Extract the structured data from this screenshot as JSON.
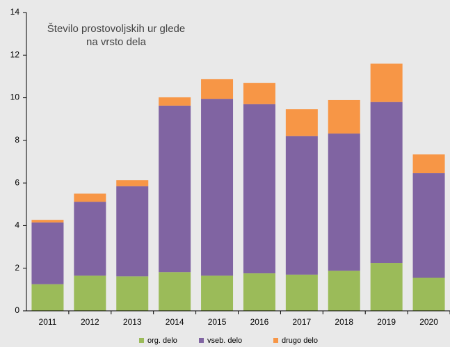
{
  "chart_data": {
    "type": "stacked_bar",
    "title": "Število prostovoljskih ur glede na vrsto dela",
    "categories": [
      "2011",
      "2012",
      "2013",
      "2014",
      "2015",
      "2016",
      "2017",
      "2018",
      "2019",
      "2020"
    ],
    "series": [
      {
        "name": "org. delo",
        "color": "#9bbb59",
        "values": [
          1.25,
          1.65,
          1.62,
          1.82,
          1.65,
          1.76,
          1.7,
          1.88,
          2.25,
          1.55
        ]
      },
      {
        "name": "vseb. delo",
        "color": "#8064a2",
        "values": [
          2.9,
          3.47,
          4.23,
          7.81,
          8.3,
          7.94,
          6.5,
          6.44,
          7.55,
          4.91
        ]
      },
      {
        "name": "drugo delo",
        "color": "#f79646",
        "values": [
          0.12,
          0.38,
          0.28,
          0.39,
          0.92,
          1.0,
          1.26,
          1.57,
          1.8,
          0.88
        ]
      }
    ],
    "ylim": [
      0,
      14
    ],
    "yticks": [
      0,
      2,
      4,
      6,
      8,
      10,
      12,
      14
    ],
    "grid": false,
    "legend": "bottom"
  }
}
